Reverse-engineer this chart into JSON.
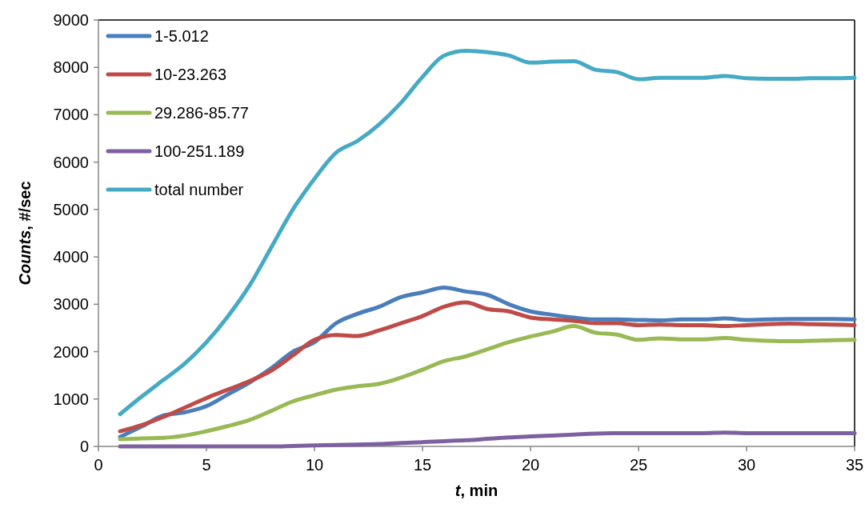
{
  "chart_data": {
    "type": "line",
    "xlabel": "t, min",
    "ylabel": "Counts, #/sec",
    "xlim": [
      0,
      35
    ],
    "xticks": [
      0,
      5,
      10,
      15,
      20,
      25,
      30,
      35
    ],
    "ylim": [
      0,
      9000
    ],
    "yticks": [
      0,
      1000,
      2000,
      3000,
      4000,
      5000,
      6000,
      7000,
      8000,
      9000
    ],
    "grid": false,
    "legend": "top left",
    "marker": "none",
    "line_style": "solid",
    "x": [
      1,
      2,
      3,
      4,
      5,
      6,
      7,
      8,
      9,
      10,
      11,
      12,
      13,
      14,
      15,
      16,
      17,
      18,
      19,
      20,
      21,
      22,
      23,
      24,
      25,
      26,
      27,
      28,
      29,
      30,
      31,
      32,
      33,
      34,
      35
    ],
    "series": [
      {
        "name": "1-5.012",
        "color": "#4a7ebb",
        "values": [
          200,
          420,
          650,
          720,
          850,
          1100,
          1350,
          1650,
          2000,
          2200,
          2600,
          2800,
          2950,
          3150,
          3250,
          3350,
          3270,
          3200,
          3000,
          2850,
          2780,
          2720,
          2680,
          2680,
          2670,
          2660,
          2680,
          2680,
          2700,
          2670,
          2680,
          2690,
          2690,
          2690,
          2680
        ]
      },
      {
        "name": "10-23.263",
        "color": "#be4b48",
        "values": [
          320,
          450,
          620,
          820,
          1020,
          1200,
          1380,
          1600,
          1920,
          2250,
          2350,
          2330,
          2450,
          2600,
          2750,
          2950,
          3040,
          2900,
          2850,
          2720,
          2680,
          2650,
          2600,
          2600,
          2560,
          2570,
          2560,
          2560,
          2540,
          2560,
          2580,
          2590,
          2580,
          2570,
          2560
        ]
      },
      {
        "name": "29.286-85.77",
        "color": "#98b954",
        "values": [
          150,
          170,
          180,
          230,
          320,
          430,
          560,
          750,
          950,
          1080,
          1200,
          1270,
          1320,
          1450,
          1620,
          1800,
          1900,
          2050,
          2200,
          2320,
          2420,
          2540,
          2400,
          2360,
          2250,
          2280,
          2260,
          2260,
          2290,
          2250,
          2230,
          2220,
          2230,
          2240,
          2250
        ]
      },
      {
        "name": "100-251.189",
        "color": "#7d60a0",
        "values": [
          0,
          0,
          0,
          0,
          0,
          0,
          0,
          0,
          10,
          20,
          30,
          40,
          50,
          70,
          90,
          110,
          130,
          160,
          190,
          210,
          230,
          250,
          270,
          280,
          280,
          280,
          280,
          280,
          290,
          280,
          280,
          280,
          280,
          280,
          280
        ]
      },
      {
        "name": "total number",
        "color": "#46aac5",
        "values": [
          680,
          1050,
          1400,
          1750,
          2200,
          2750,
          3400,
          4200,
          5000,
          5650,
          6200,
          6450,
          6800,
          7250,
          7800,
          8250,
          8350,
          8320,
          8250,
          8100,
          8120,
          8130,
          7950,
          7900,
          7750,
          7780,
          7780,
          7780,
          7820,
          7770,
          7760,
          7760,
          7770,
          7770,
          7780
        ]
      }
    ]
  }
}
